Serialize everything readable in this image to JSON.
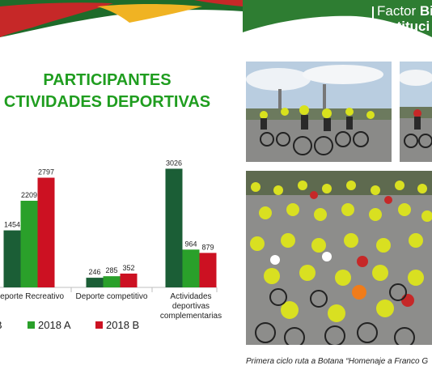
{
  "brand": {
    "line1_regular": "Factor ",
    "line1_bold": "Bie",
    "line2": "Instituci"
  },
  "title": {
    "line1": "PARTICIPANTES",
    "line2": "CTIVIDADES DEPORTIVAS"
  },
  "caption": "Primera ciclo ruta a Botana “Homenaje a Franco G",
  "colors": {
    "banner_green": "#2e7d32",
    "banner_red": "#c62828",
    "banner_yellow": "#f0b323",
    "title_green": "#1f9d1f"
  },
  "chart_data": {
    "type": "bar",
    "categories": [
      "Deporte Recreativo",
      "Deporte competitivo",
      "Actividades deportivas complementarias"
    ],
    "category_lines": [
      [
        "Deporte Recreativo"
      ],
      [
        "Deporte competitivo"
      ],
      [
        "Actividades",
        "deportivas",
        "complementarias"
      ]
    ],
    "series": [
      {
        "name": "",
        "legend_text": "B",
        "color": "#1b5e36",
        "values": [
          1454,
          246,
          3026
        ]
      },
      {
        "name": "2018 A",
        "legend_text": "2018 A",
        "color": "#2aa02a",
        "values": [
          2209,
          285,
          964
        ]
      },
      {
        "name": "2018 B",
        "legend_text": "2018 B",
        "color": "#cc1122",
        "values": [
          2797,
          352,
          879
        ]
      }
    ],
    "ylim": [
      0,
      3200
    ],
    "title": "",
    "xlabel": "",
    "ylabel": "",
    "grid": false,
    "legend": "bottom"
  }
}
